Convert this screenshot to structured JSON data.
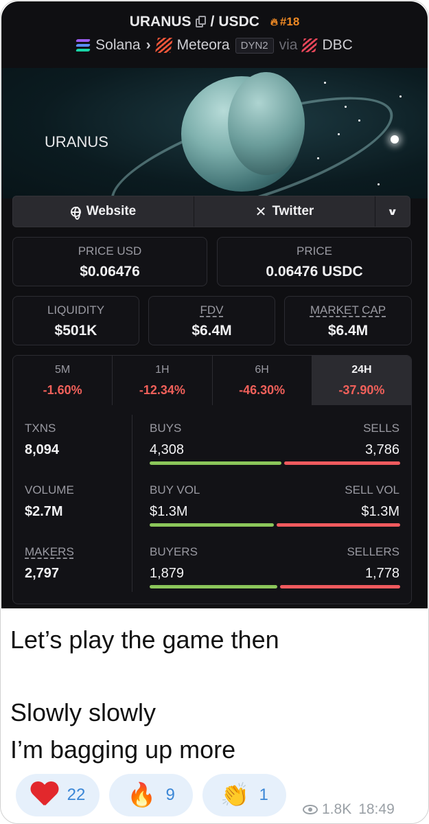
{
  "header": {
    "base": "URANUS",
    "separator": "/",
    "quote": "USDC",
    "rank": "#18",
    "chain": "Solana",
    "chevron": "›",
    "dex": "Meteora",
    "dex_version": "DYN2",
    "via": "via",
    "launchpad": "DBC"
  },
  "banner": {
    "token_name": "URANUS"
  },
  "links": {
    "website": "Website",
    "twitter": "Twitter"
  },
  "price": {
    "usd_label": "PRICE USD",
    "usd_value": "$0.06476",
    "quote_label": "PRICE",
    "quote_value": "0.06476 USDC"
  },
  "stats": {
    "liquidity_label": "LIQUIDITY",
    "liquidity_value": "$501K",
    "fdv_label": "FDV",
    "fdv_value": "$6.4M",
    "mcap_label": "MARKET CAP",
    "mcap_value": "$6.4M"
  },
  "timeframes": [
    {
      "label": "5M",
      "value": "-1.60%"
    },
    {
      "label": "1H",
      "value": "-12.34%"
    },
    {
      "label": "6H",
      "value": "-46.30%"
    },
    {
      "label": "24H",
      "value": "-37.90%",
      "selected": true
    }
  ],
  "txns": {
    "txns_label": "TXNS",
    "txns_value": "8,094",
    "buys_label": "BUYS",
    "buys_value": "4,308",
    "sells_label": "SELLS",
    "sells_value": "3,786",
    "buy_share": 0.532
  },
  "volume": {
    "volume_label": "VOLUME",
    "volume_value": "$2.7M",
    "buyvol_label": "BUY VOL",
    "buyvol_value": "$1.3M",
    "sellvol_label": "SELL VOL",
    "sellvol_value": "$1.3M",
    "buy_share": 0.5
  },
  "makers": {
    "makers_label": "MAKERS",
    "makers_value": "2,797",
    "buyers_label": "BUYERS",
    "buyers_value": "1,879",
    "sellers_label": "SELLERS",
    "sellers_value": "1,778",
    "buy_share": 0.514
  },
  "message": {
    "line1": "Let’s play the game then",
    "line2": "Slowly slowly",
    "line3": "I’m bagging up more"
  },
  "reactions": [
    {
      "icon": "heart-icon",
      "count": "22"
    },
    {
      "icon": "fire-icon",
      "count": "9"
    },
    {
      "icon": "clap-icon",
      "count": "1"
    }
  ],
  "meta": {
    "views": "1.8K",
    "time": "18:49"
  },
  "colors": {
    "negative": "#f0605a",
    "buy_bar": "#8bc65a",
    "sell_bar": "#f05a5e",
    "rank": "#f08a24",
    "reaction_count": "#3a86d6"
  }
}
